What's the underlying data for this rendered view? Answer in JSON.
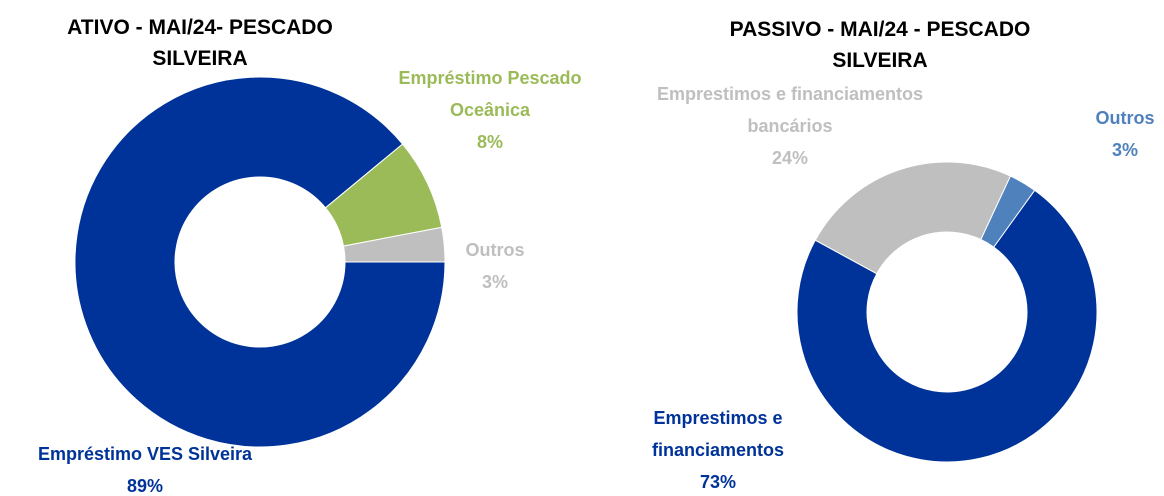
{
  "chart_data": [
    {
      "type": "donut",
      "title": "ATIVO - MAI/24- PESCADO SILVEIRA",
      "categories": [
        "Empréstimo VES Silveira",
        "Empréstimo Pescado Oceânica",
        "Outros"
      ],
      "values": [
        89,
        8,
        3
      ],
      "value_labels": [
        "89%",
        "8%",
        "3%"
      ],
      "colors": [
        "#003399",
        "#9bbb59",
        "#bfbfbf"
      ]
    },
    {
      "type": "donut",
      "title": "PASSIVO - MAI/24 - PESCADO SILVEIRA",
      "categories": [
        "Outros",
        "Emprestimos e financiamentos",
        "Emprestimos e financiamentos bancários"
      ],
      "values": [
        3,
        73,
        24
      ],
      "value_labels": [
        "3%",
        "73%",
        "24%"
      ],
      "colors": [
        "#4f81bd",
        "#003399",
        "#bfbfbf"
      ]
    }
  ]
}
